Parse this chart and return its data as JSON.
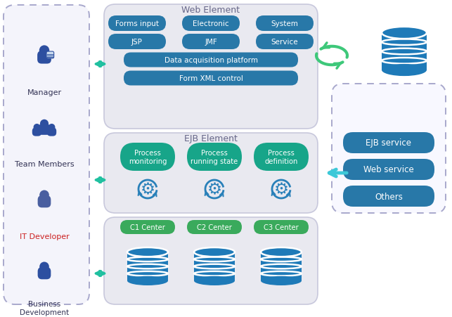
{
  "bg": "#ffffff",
  "panel_fill": "#e9e9f0",
  "panel_edge": "#c8c8dc",
  "left_fill": "#f4f4fb",
  "right_fill": "#f8f8ff",
  "dashed_edge": "#a8a8cc",
  "btn_blue": "#2878a8",
  "btn_teal": "#17a589",
  "btn_green": "#3aaa5c",
  "db_color": "#1e7ab8",
  "person_blue": "#2d4fa0",
  "it_blue": "#4a5fa0",
  "arrow_teal": "#20c0a0",
  "arrow_blue": "#2980b9",
  "green_arrow": "#3ec87a",
  "title_col": "#666688",
  "white": "#ffffff",
  "red_text": "#cc2222",
  "web_row1": [
    "Forms input",
    "Electronic",
    "System"
  ],
  "web_row2": [
    "JSP",
    "JMF",
    "Service"
  ],
  "ejb_row": [
    "Process\nmonitoring",
    "Process\nrunning state",
    "Process\ndefinition"
  ],
  "center_row": [
    "C1 Center",
    "C2 Center",
    "C3 Center"
  ],
  "services": [
    "EJB service",
    "Web service",
    "Others"
  ]
}
